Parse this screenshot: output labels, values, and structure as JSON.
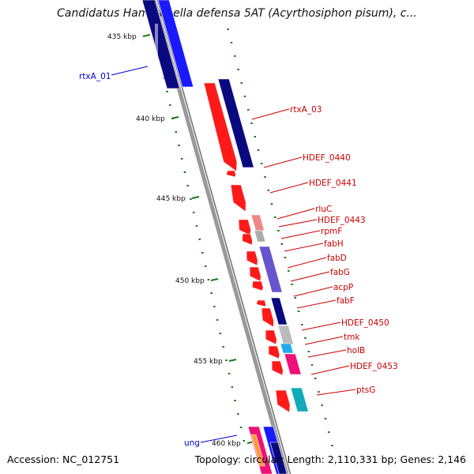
{
  "title": "Candidatus Hamiltonella defensa 5AT (Acyrthosiphon pisum), c...",
  "footer": {
    "accession": "Accession: NC_012751",
    "topology": "Topology: circular; Length: 2,110,331 bp; Genes: 2,146"
  },
  "colors": {
    "backbone": "#999999",
    "forward_label": "#cc0000",
    "reverse_label": "#0000cc",
    "forward_gene": "#ff1a1a",
    "reverse_gene": "#1a1aff",
    "tick_mark": "#1a7a1a"
  },
  "scale_ticks": [
    {
      "label": "435 kbp"
    },
    {
      "label": "440 kbp"
    },
    {
      "label": "445 kbp"
    },
    {
      "label": "450 kbp"
    },
    {
      "label": "455 kbp"
    },
    {
      "label": "460 kbp"
    }
  ],
  "gene_labels": [
    {
      "text": "rtxA_01",
      "strand": "reverse"
    },
    {
      "text": "rtxA_03",
      "strand": "forward"
    },
    {
      "text": "HDEF_0440",
      "strand": "forward"
    },
    {
      "text": "HDEF_0441",
      "strand": "forward"
    },
    {
      "text": "rluC",
      "strand": "forward"
    },
    {
      "text": "HDEF_0443",
      "strand": "forward"
    },
    {
      "text": "rpmF",
      "strand": "forward"
    },
    {
      "text": "fabH",
      "strand": "forward"
    },
    {
      "text": "fabD",
      "strand": "forward"
    },
    {
      "text": "fabG",
      "strand": "forward"
    },
    {
      "text": "acpP",
      "strand": "forward"
    },
    {
      "text": "fabF",
      "strand": "forward"
    },
    {
      "text": "HDEF_0450",
      "strand": "forward"
    },
    {
      "text": "tmk",
      "strand": "forward"
    },
    {
      "text": "holB",
      "strand": "forward"
    },
    {
      "text": "HDEF_0453",
      "strand": "forward"
    },
    {
      "text": "ptsG",
      "strand": "forward"
    },
    {
      "text": "ung",
      "strand": "reverse"
    }
  ]
}
